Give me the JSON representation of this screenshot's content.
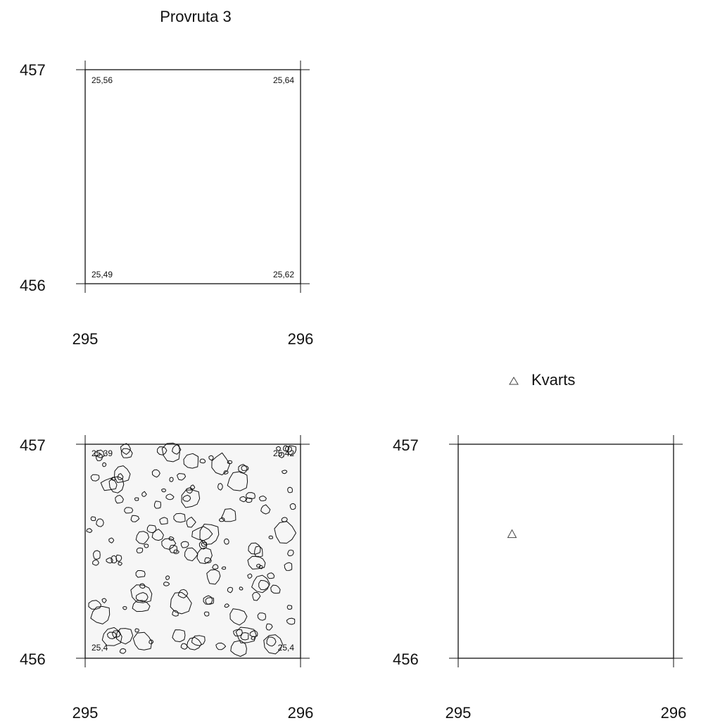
{
  "title": "Provruta 3",
  "panels": [
    {
      "id": "top",
      "axis": {
        "y_top": "457",
        "y_bottom": "456",
        "x_left": "295",
        "x_right": "296"
      },
      "corners": {
        "top_left": "25,56",
        "top_right": "25,64",
        "bottom_left": "25,49",
        "bottom_right": "25,62"
      }
    },
    {
      "id": "stones",
      "axis": {
        "y_top": "457",
        "y_bottom": "456",
        "x_left": "295",
        "x_right": "296"
      },
      "corners": {
        "top_left": "25,39",
        "top_right": "25,42",
        "bottom_left": "25,4",
        "bottom_right": "25,4"
      }
    },
    {
      "id": "kvarts",
      "axis": {
        "y_top": "457",
        "y_bottom": "456",
        "x_left": "295",
        "x_right": "296"
      },
      "marker": {
        "x": 295.25,
        "y": 456.58
      }
    }
  ],
  "legend": {
    "label": "Kvarts",
    "symbol": "triangle"
  }
}
